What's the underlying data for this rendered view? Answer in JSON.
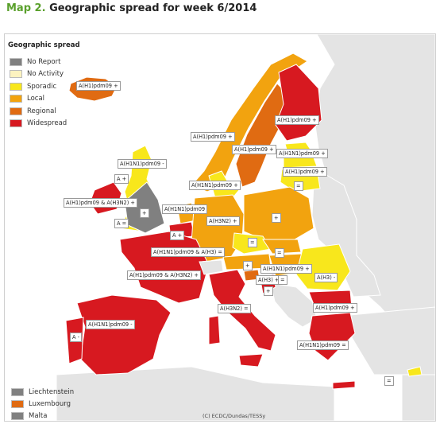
{
  "title": {
    "prefix": "Map 2.",
    "text": "Geographic spread for week 6/2014"
  },
  "legend": {
    "title": "Geographic spread",
    "items": [
      {
        "label": "No Report",
        "color": "#808080"
      },
      {
        "label": "No Activity",
        "color": "#fdf3c0"
      },
      {
        "label": "Sporadic",
        "color": "#f8e71c"
      },
      {
        "label": "Local",
        "color": "#f2a30f"
      },
      {
        "label": "Regional",
        "color": "#e06b12"
      },
      {
        "label": "Widespread",
        "color": "#d71920"
      }
    ]
  },
  "small_countries": [
    {
      "label": "Liechtenstein",
      "color": "#808080"
    },
    {
      "label": "Luxembourg",
      "color": "#e06b12"
    },
    {
      "label": "Malta",
      "color": "#808080"
    }
  ],
  "map_labels": [
    "A(H1)pdm09 +",
    "A(H1)pdm09 +",
    "A(H1)pdm09 +",
    "A(H1)pdm09 +",
    "A(H1N1)pdm09 +",
    "A(H1)pdm09 +",
    "A(H1N1)pdm09 -",
    "A(H1N1)pdm09 +",
    "=",
    "A +",
    "A(H1)pdm09 & A(H3N2) +",
    "+",
    "A(H1N1)pdm09",
    "A =",
    "A(H3N2) +",
    "+",
    "A +",
    "=",
    "A(H1N1)pdm09 & A(H3) =",
    "=",
    "+",
    "A(H1N1)pdm09 +",
    "A(H1)pdm09 & A(H3N2) +",
    "A(H3) +",
    "=",
    "+",
    "A(H3) -",
    "A(H3N2) =",
    "A(H1)pdm09 +",
    "A(H1N1)pdm09 -",
    "A -",
    "A(H1N1)pdm09 =",
    "="
  ],
  "credit": "(C) ECDC/Dundas/TESSy"
}
